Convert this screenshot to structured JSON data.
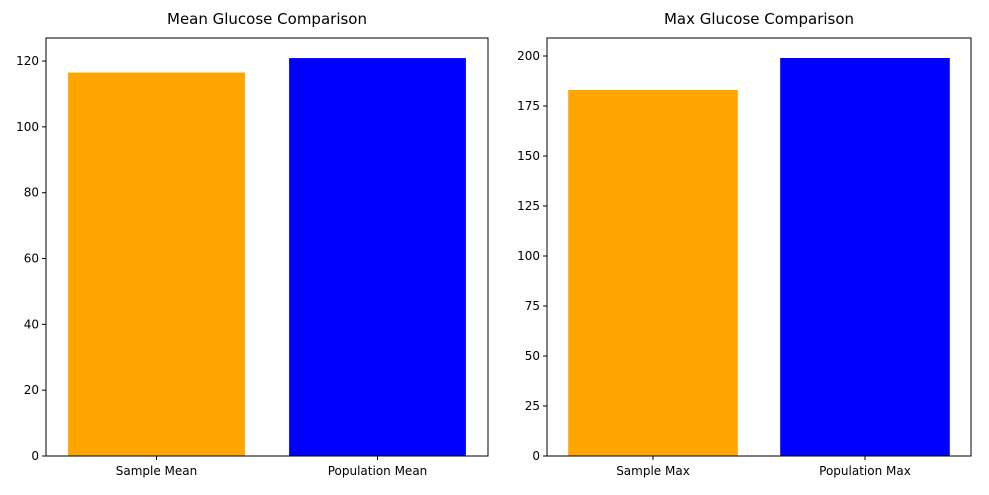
{
  "chart_data": [
    {
      "type": "bar",
      "title": "Mean Glucose Comparison",
      "xlabel": "",
      "ylabel": "",
      "categories": [
        "Sample Mean",
        "Population Mean"
      ],
      "values": [
        116.5,
        120.9
      ],
      "colors": [
        "#ffa500",
        "#0000ff"
      ],
      "ylim": [
        0,
        127
      ],
      "yticks": [
        0,
        20,
        40,
        60,
        80,
        100,
        120
      ],
      "grid": false
    },
    {
      "type": "bar",
      "title": "Max Glucose Comparison",
      "xlabel": "",
      "ylabel": "",
      "categories": [
        "Sample Max",
        "Population Max"
      ],
      "values": [
        183,
        199
      ],
      "colors": [
        "#ffa500",
        "#0000ff"
      ],
      "ylim": [
        0,
        209
      ],
      "yticks": [
        0,
        25,
        50,
        75,
        100,
        125,
        150,
        175,
        200
      ],
      "grid": false
    }
  ]
}
